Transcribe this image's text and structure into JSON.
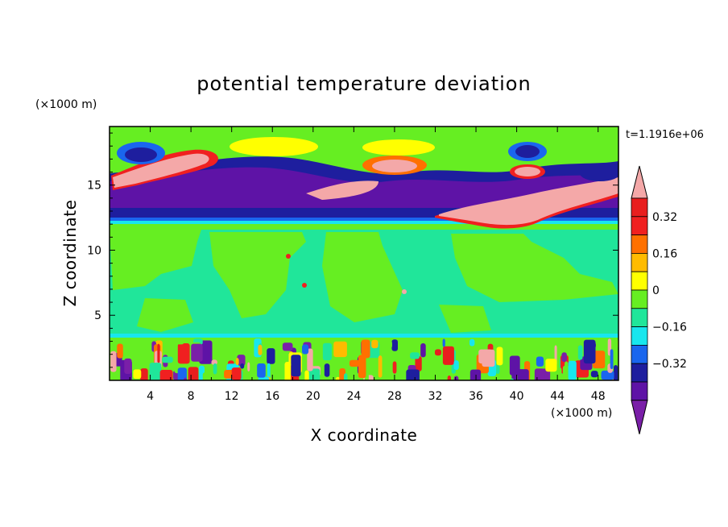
{
  "chart_data": {
    "type": "heatmap",
    "title": "potential temperature deviation",
    "xlabel": "X coordinate",
    "ylabel": "Z coordinate",
    "x_unit": "(×1000 m)",
    "y_unit": "(×1000 m)",
    "time_label": "t=1.1916e+06",
    "xlim": [
      0,
      50
    ],
    "ylim": [
      0,
      19.5
    ],
    "x_ticks": [
      "4",
      "8",
      "12",
      "16",
      "20",
      "24",
      "28",
      "32",
      "36",
      "40",
      "44",
      "48"
    ],
    "y_ticks": [
      "5",
      "10",
      "15"
    ],
    "colorbar": {
      "levels": [
        -0.48,
        -0.4,
        -0.32,
        -0.24,
        -0.16,
        -0.08,
        0,
        0.08,
        0.16,
        0.24,
        0.32,
        0.4,
        0.48
      ],
      "labels": [
        "0.32",
        "0.16",
        "0",
        "-0.16",
        "-0.32"
      ],
      "colors": [
        "#7a1fa8",
        "#5e13a6",
        "#1e1e9e",
        "#1a66ee",
        "#18e6ee",
        "#20e69a",
        "#66ee22",
        "#ffff00",
        "#ffbb00",
        "#ff7000",
        "#f02020",
        "#e81e1e",
        "#f4a8a8"
      ]
    },
    "bands": [
      {
        "z": [
          0,
          3.5
        ],
        "pattern": "mixed turbulent (-0.48 to +0.48)"
      },
      {
        "z": [
          3.5,
          12
        ],
        "value": 0.0
      },
      {
        "z": [
          12.5,
          13.5
        ],
        "value": -0.4
      },
      {
        "z": [
          13.5,
          16.5
        ],
        "value": -0.48
      },
      {
        "z": [
          15.0,
          17.5
        ],
        "value": 0.48
      },
      {
        "z": [
          16.5,
          19.5
        ],
        "value": 0.0
      }
    ]
  }
}
